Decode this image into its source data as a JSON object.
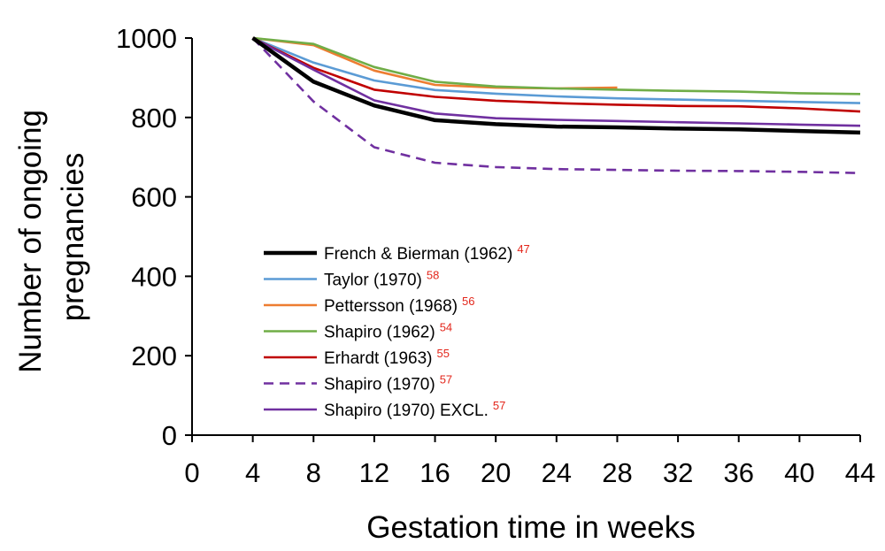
{
  "chart_data": {
    "type": "line",
    "title": "",
    "xlabel": "Gestation time in weeks",
    "ylabel_lines": [
      "Number of ongoing",
      "pregnancies"
    ],
    "xlim": [
      0,
      44
    ],
    "ylim": [
      0,
      1000
    ],
    "x_ticks": [
      0,
      4,
      8,
      12,
      16,
      20,
      24,
      28,
      32,
      36,
      40,
      44
    ],
    "y_ticks": [
      0,
      200,
      400,
      600,
      800,
      1000
    ],
    "grid": false,
    "legend_position": "center-left",
    "series": [
      {
        "name": "French & Bierman (1962)",
        "ref": "47",
        "color": "#000000",
        "dash": "solid",
        "weight": "bold",
        "x": [
          4,
          8,
          12,
          16,
          20,
          24,
          28,
          32,
          36,
          40,
          44
        ],
        "y": [
          1000,
          890,
          830,
          793,
          783,
          777,
          775,
          772,
          770,
          766,
          762
        ]
      },
      {
        "name": "Taylor (1970)",
        "ref": "58",
        "color": "#5b9bd5",
        "dash": "solid",
        "weight": "normal",
        "x": [
          4,
          8,
          12,
          16,
          20,
          24,
          28,
          32,
          36,
          40,
          44
        ],
        "y": [
          1000,
          938,
          893,
          869,
          860,
          853,
          848,
          845,
          842,
          839,
          836
        ]
      },
      {
        "name": "Pettersson (1968)",
        "ref": "56",
        "color": "#ed7d31",
        "dash": "solid",
        "weight": "normal",
        "x": [
          4,
          8,
          12,
          16,
          20,
          24,
          28
        ],
        "y": [
          1000,
          982,
          918,
          882,
          875,
          873,
          875
        ]
      },
      {
        "name": "Shapiro (1962)",
        "ref": "54",
        "color": "#70ad47",
        "dash": "solid",
        "weight": "normal",
        "x": [
          4,
          8,
          12,
          16,
          20,
          24,
          28,
          32,
          36,
          40,
          44
        ],
        "y": [
          1000,
          985,
          927,
          890,
          878,
          873,
          870,
          867,
          865,
          861,
          859
        ]
      },
      {
        "name": "Erhardt (1963)",
        "ref": "55",
        "color": "#c00000",
        "dash": "solid",
        "weight": "normal",
        "x": [
          4,
          8,
          12,
          16,
          20,
          24,
          28,
          32,
          36,
          40,
          44
        ],
        "y": [
          1000,
          925,
          870,
          852,
          842,
          836,
          832,
          829,
          828,
          823,
          815
        ]
      },
      {
        "name": "Shapiro (1970)",
        "ref": "57",
        "color": "#7030a0",
        "dash": "dashed",
        "weight": "normal",
        "x": [
          4,
          8,
          12,
          16,
          20,
          24,
          28,
          32,
          36,
          40,
          44
        ],
        "y": [
          1000,
          840,
          725,
          686,
          675,
          670,
          668,
          666,
          665,
          663,
          660
        ]
      },
      {
        "name": "Shapiro (1970) EXCL.",
        "ref": "57",
        "color": "#7030a0",
        "dash": "solid",
        "weight": "normal",
        "x": [
          4,
          8,
          12,
          16,
          20,
          24,
          28,
          32,
          36,
          40,
          44
        ],
        "y": [
          1000,
          920,
          843,
          810,
          798,
          794,
          791,
          788,
          785,
          782,
          779
        ]
      }
    ]
  }
}
